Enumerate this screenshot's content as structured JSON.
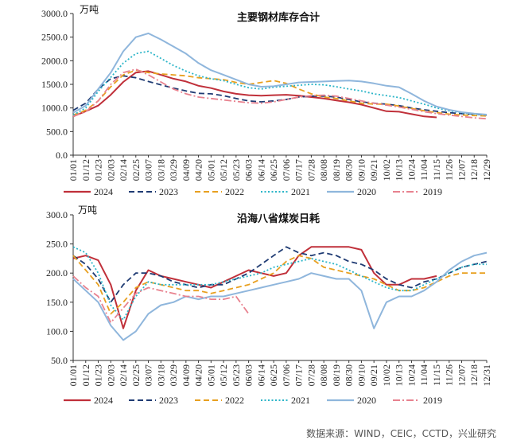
{
  "chart_data": [
    {
      "type": "line",
      "title": "主要钢材库存合计",
      "unit": "万吨",
      "ylim": [
        0,
        3000
      ],
      "yticks": [
        "3000.0",
        "2500.0",
        "2000.0",
        "1500.0",
        "1000.0",
        "500.0",
        "0.0"
      ],
      "xticks": [
        "01/01",
        "01/12",
        "01/23",
        "02/03",
        "02/14",
        "02/25",
        "03/07",
        "03/18",
        "03/29",
        "04/09",
        "04/20",
        "05/01",
        "05/12",
        "05/23",
        "06/03",
        "06/14",
        "06/25",
        "07/06",
        "07/17",
        "07/28",
        "08/08",
        "08/19",
        "08/30",
        "09/10",
        "09/21",
        "10/02",
        "10/13",
        "10/24",
        "11/04",
        "11/15",
        "11/26",
        "12/07",
        "12/18",
        "12/29"
      ],
      "grid": false,
      "legend_position": "bottom",
      "series": [
        {
          "name": "2024",
          "color": "#c0303a",
          "style": "solid",
          "x": [
            0,
            1,
            2,
            3,
            4,
            5,
            6,
            7,
            8,
            9,
            10,
            11,
            12,
            13,
            14,
            15,
            16,
            17,
            18,
            19,
            20,
            21,
            22,
            23,
            24,
            25,
            26,
            27,
            28,
            29,
            30,
            31,
            32,
            33
          ],
          "values": [
            820,
            930,
            1050,
            1280,
            1550,
            1750,
            1780,
            1700,
            1620,
            1560,
            1470,
            1420,
            1350,
            1300,
            1270,
            1260,
            1270,
            1280,
            1260,
            1230,
            1200,
            1160,
            1120,
            1070,
            1000,
            930,
            920,
            870,
            820,
            800,
            null,
            null,
            null,
            null
          ]
        },
        {
          "name": "2023",
          "color": "#1f3b73",
          "style": "dash",
          "x": [
            0,
            1,
            2,
            3,
            4,
            5,
            6,
            7,
            8,
            9,
            10,
            11,
            12,
            13,
            14,
            15,
            16,
            17,
            18,
            19,
            20,
            21,
            22,
            23,
            24,
            25,
            26,
            27,
            28,
            29,
            30,
            31,
            32,
            33
          ],
          "values": [
            950,
            1100,
            1400,
            1620,
            1680,
            1640,
            1560,
            1490,
            1420,
            1360,
            1310,
            1300,
            1260,
            1200,
            1150,
            1130,
            1150,
            1180,
            1230,
            1250,
            1250,
            1230,
            1180,
            1130,
            1100,
            1080,
            1050,
            1000,
            960,
            930,
            900,
            880,
            870,
            850
          ]
        },
        {
          "name": "2022",
          "color": "#e8a020",
          "style": "dash",
          "x": [
            0,
            1,
            2,
            3,
            4,
            5,
            6,
            7,
            8,
            9,
            10,
            11,
            12,
            13,
            14,
            15,
            16,
            17,
            18,
            19,
            20,
            21,
            22,
            23,
            24,
            25,
            26,
            27,
            28,
            29,
            30,
            31,
            32,
            33
          ],
          "values": [
            850,
            950,
            1150,
            1450,
            1700,
            1800,
            1750,
            1720,
            1700,
            1680,
            1640,
            1620,
            1600,
            1540,
            1500,
            1540,
            1580,
            1520,
            1400,
            1300,
            1230,
            1200,
            1150,
            1100,
            1080,
            1080,
            1040,
            990,
            940,
            900,
            870,
            850,
            840,
            830
          ]
        },
        {
          "name": "2021",
          "color": "#2bb5c8",
          "style": "dot",
          "x": [
            0,
            1,
            2,
            3,
            4,
            5,
            6,
            7,
            8,
            9,
            10,
            11,
            12,
            13,
            14,
            15,
            16,
            17,
            18,
            19,
            20,
            21,
            22,
            23,
            24,
            25,
            26,
            27,
            28,
            29,
            30,
            31,
            32,
            33
          ],
          "values": [
            850,
            1000,
            1350,
            1650,
            1950,
            2150,
            2200,
            2050,
            1900,
            1780,
            1680,
            1620,
            1580,
            1500,
            1430,
            1400,
            1440,
            1460,
            1480,
            1500,
            1490,
            1450,
            1400,
            1360,
            1300,
            1260,
            1220,
            1150,
            1080,
            1000,
            940,
            900,
            870,
            850
          ]
        },
        {
          "name": "2020",
          "color": "#8fb6dc",
          "style": "solid",
          "x": [
            0,
            1,
            2,
            3,
            4,
            5,
            6,
            7,
            8,
            9,
            10,
            11,
            12,
            13,
            14,
            15,
            16,
            17,
            18,
            19,
            20,
            21,
            22,
            23,
            24,
            25,
            26,
            27,
            28,
            29,
            30,
            31,
            32,
            33
          ],
          "values": [
            900,
            1050,
            1400,
            1750,
            2200,
            2500,
            2580,
            2450,
            2300,
            2150,
            1950,
            1800,
            1700,
            1600,
            1500,
            1450,
            1460,
            1500,
            1540,
            1550,
            1560,
            1570,
            1580,
            1560,
            1520,
            1470,
            1440,
            1300,
            1150,
            1030,
            960,
            910,
            880,
            860
          ]
        },
        {
          "name": "2019",
          "color": "#e8828f",
          "style": "dashdot",
          "x": [
            0,
            1,
            2,
            3,
            4,
            5,
            6,
            7,
            8,
            9,
            10,
            11,
            12,
            13,
            14,
            15,
            16,
            17,
            18,
            19,
            20,
            21,
            22,
            23,
            24,
            25,
            26,
            27,
            28,
            29,
            30,
            31,
            32,
            33
          ],
          "values": [
            820,
            920,
            1150,
            1500,
            1750,
            1820,
            1700,
            1550,
            1400,
            1300,
            1230,
            1200,
            1170,
            1140,
            1110,
            1100,
            1130,
            1180,
            1230,
            1260,
            1270,
            1250,
            1200,
            1150,
            1100,
            1060,
            1020,
            970,
            920,
            880,
            850,
            820,
            790,
            770
          ]
        }
      ]
    },
    {
      "type": "line",
      "title": "沿海八省煤炭日耗",
      "unit": "万吨",
      "ylim": [
        50,
        300
      ],
      "yticks": [
        "300.0",
        "250.0",
        "200.0",
        "150.0",
        "100.0",
        "50.0"
      ],
      "xticks": [
        "01/01",
        "01/12",
        "01/23",
        "02/03",
        "02/14",
        "02/25",
        "03/07",
        "03/18",
        "03/29",
        "04/09",
        "04/20",
        "05/01",
        "05/12",
        "05/23",
        "06/03",
        "06/14",
        "06/25",
        "07/06",
        "07/17",
        "07/28",
        "08/08",
        "08/19",
        "08/30",
        "09/10",
        "09/21",
        "10/02",
        "10/13",
        "10/24",
        "11/04",
        "11/15",
        "11/26",
        "12/07",
        "12/18",
        "12/31"
      ],
      "grid": false,
      "legend_position": "bottom",
      "series": [
        {
          "name": "2024",
          "color": "#c0303a",
          "style": "solid",
          "x": [
            0,
            1,
            2,
            3,
            4,
            5,
            6,
            7,
            8,
            9,
            10,
            11,
            12,
            13,
            14,
            15,
            16,
            17,
            18,
            19,
            20,
            21,
            22,
            23,
            24,
            25,
            26,
            27,
            28,
            29
          ],
          "values": [
            225,
            230,
            222,
            180,
            105,
            170,
            205,
            195,
            190,
            185,
            180,
            175,
            185,
            195,
            205,
            200,
            195,
            200,
            230,
            245,
            245,
            245,
            245,
            240,
            200,
            180,
            180,
            190,
            190,
            195
          ]
        },
        {
          "name": "2023",
          "color": "#1f3b73",
          "style": "dash",
          "x": [
            0,
            1,
            2,
            3,
            4,
            5,
            6,
            7,
            8,
            9,
            10,
            11,
            12,
            13,
            14,
            15,
            16,
            17,
            18,
            19,
            20,
            21,
            22,
            23,
            24,
            25,
            26,
            27,
            28,
            29,
            30,
            31,
            32,
            33
          ],
          "values": [
            230,
            215,
            190,
            150,
            180,
            200,
            200,
            195,
            185,
            180,
            175,
            180,
            180,
            190,
            200,
            215,
            230,
            245,
            235,
            230,
            235,
            230,
            220,
            215,
            205,
            190,
            180,
            175,
            185,
            190,
            200,
            210,
            215,
            220
          ]
        },
        {
          "name": "2022",
          "color": "#e8a020",
          "style": "dash",
          "x": [
            0,
            1,
            2,
            3,
            4,
            5,
            6,
            7,
            8,
            9,
            10,
            11,
            12,
            13,
            14,
            15,
            16,
            17,
            18,
            19,
            20,
            21,
            22,
            23,
            24,
            25,
            26,
            27,
            28,
            29,
            30,
            31,
            32,
            33
          ],
          "values": [
            230,
            205,
            180,
            130,
            150,
            175,
            185,
            180,
            175,
            170,
            170,
            165,
            170,
            175,
            180,
            190,
            200,
            220,
            230,
            225,
            210,
            205,
            200,
            195,
            190,
            180,
            170,
            170,
            175,
            185,
            195,
            200,
            200,
            200
          ]
        },
        {
          "name": "2021",
          "color": "#2bb5c8",
          "style": "dot",
          "x": [
            0,
            1,
            2,
            3,
            4,
            5,
            6,
            7,
            8,
            9,
            10,
            11,
            12,
            13,
            14,
            15,
            16,
            17,
            18,
            19,
            20,
            21,
            22,
            23,
            24,
            25,
            26,
            27,
            28,
            29,
            30,
            31,
            32,
            33
          ],
          "values": [
            245,
            235,
            200,
            145,
            120,
            160,
            185,
            180,
            180,
            180,
            180,
            180,
            185,
            190,
            195,
            200,
            210,
            215,
            220,
            225,
            220,
            215,
            205,
            195,
            185,
            175,
            170,
            170,
            180,
            190,
            200,
            210,
            215,
            215
          ]
        },
        {
          "name": "2020",
          "color": "#8fb6dc",
          "style": "solid",
          "x": [
            0,
            1,
            2,
            3,
            4,
            5,
            6,
            7,
            8,
            9,
            10,
            11,
            12,
            13,
            14,
            15,
            16,
            17,
            18,
            19,
            20,
            21,
            22,
            23,
            24,
            25,
            26,
            27,
            28,
            29,
            30,
            31,
            32,
            33
          ],
          "values": [
            190,
            170,
            150,
            110,
            85,
            100,
            130,
            145,
            150,
            160,
            155,
            160,
            160,
            165,
            170,
            175,
            180,
            185,
            190,
            200,
            195,
            190,
            190,
            170,
            105,
            150,
            160,
            160,
            170,
            185,
            205,
            220,
            230,
            235
          ]
        },
        {
          "name": "2019",
          "color": "#e8828f",
          "style": "dashdot",
          "x": [
            0,
            1,
            2,
            3,
            4,
            5,
            6,
            7,
            8,
            9,
            10,
            11,
            12,
            13,
            14,
            15,
            16,
            17,
            18,
            19,
            20,
            21,
            22,
            23,
            24,
            25,
            26,
            27,
            28,
            29,
            30,
            31,
            32,
            33
          ],
          "values": [
            195,
            175,
            160,
            115,
            140,
            165,
            175,
            170,
            165,
            160,
            160,
            155,
            155,
            160,
            130,
            null,
            null,
            null,
            null,
            null,
            null,
            null,
            null,
            null,
            null,
            null,
            null,
            null,
            null,
            null,
            null,
            null,
            null,
            null
          ]
        }
      ]
    }
  ],
  "source": "数据来源：WIND，CEIC，CCTD，兴业研究"
}
